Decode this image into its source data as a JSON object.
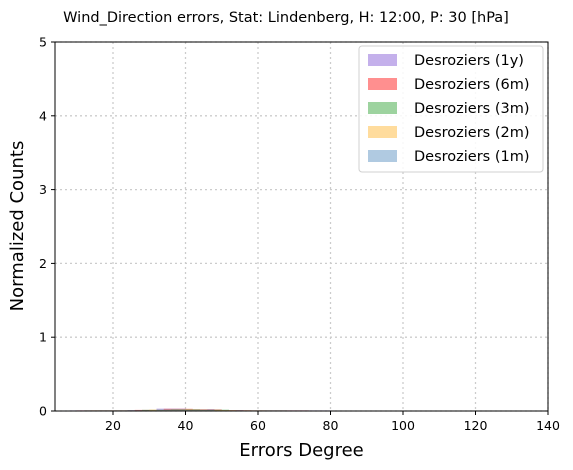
{
  "chart_data": {
    "type": "histogram",
    "title": "Wind_Direction errors, Stat: Lindenberg, H: 12:00, P: 30 [hPa]",
    "xlabel": "Errors Degree",
    "ylabel": "Normalized Counts",
    "xlim": [
      4,
      140
    ],
    "ylim": [
      0,
      5
    ],
    "xticks": [
      "20",
      "40",
      "60",
      "80",
      "100",
      "120",
      "140"
    ],
    "yticks": [
      "0",
      "1",
      "2",
      "3",
      "4",
      "5"
    ],
    "grid": true,
    "legend_position": "top-right",
    "series": [
      {
        "name": "Desroziers (1y)",
        "color": "#9370db",
        "bins": [
          {
            "x0": 8,
            "x1": 16,
            "y": 0.002
          },
          {
            "x0": 16,
            "x1": 24,
            "y": 0.004
          },
          {
            "x0": 24,
            "x1": 32,
            "y": 0.012
          },
          {
            "x0": 32,
            "x1": 40,
            "y": 0.032
          },
          {
            "x0": 40,
            "x1": 48,
            "y": 0.025
          },
          {
            "x0": 48,
            "x1": 56,
            "y": 0.012
          },
          {
            "x0": 56,
            "x1": 64,
            "y": 0.005
          },
          {
            "x0": 64,
            "x1": 72,
            "y": 0.003
          },
          {
            "x0": 72,
            "x1": 80,
            "y": 0.002
          }
        ]
      },
      {
        "name": "Desroziers (6m)",
        "color": "#ff3333",
        "bins": [
          {
            "x0": 10,
            "x1": 18,
            "y": 0.002
          },
          {
            "x0": 18,
            "x1": 26,
            "y": 0.006
          },
          {
            "x0": 26,
            "x1": 34,
            "y": 0.015
          },
          {
            "x0": 34,
            "x1": 42,
            "y": 0.03
          },
          {
            "x0": 42,
            "x1": 50,
            "y": 0.022
          },
          {
            "x0": 50,
            "x1": 58,
            "y": 0.01
          },
          {
            "x0": 58,
            "x1": 66,
            "y": 0.004
          },
          {
            "x0": 66,
            "x1": 74,
            "y": 0.002
          }
        ]
      },
      {
        "name": "Desroziers (3m)",
        "color": "#4caf50",
        "bins": [
          {
            "x0": 12,
            "x1": 20,
            "y": 0.002
          },
          {
            "x0": 20,
            "x1": 28,
            "y": 0.006
          },
          {
            "x0": 28,
            "x1": 36,
            "y": 0.016
          },
          {
            "x0": 36,
            "x1": 44,
            "y": 0.024
          },
          {
            "x0": 44,
            "x1": 52,
            "y": 0.018
          },
          {
            "x0": 52,
            "x1": 60,
            "y": 0.008
          },
          {
            "x0": 60,
            "x1": 68,
            "y": 0.003
          }
        ]
      },
      {
        "name": "Desroziers (2m)",
        "color": "#ffc04d",
        "bins": [
          {
            "x0": 14,
            "x1": 22,
            "y": 0.002
          },
          {
            "x0": 22,
            "x1": 30,
            "y": 0.007
          },
          {
            "x0": 30,
            "x1": 38,
            "y": 0.018
          },
          {
            "x0": 38,
            "x1": 46,
            "y": 0.02
          },
          {
            "x0": 46,
            "x1": 54,
            "y": 0.012
          },
          {
            "x0": 54,
            "x1": 62,
            "y": 0.005
          }
        ]
      },
      {
        "name": "Desroziers (1m)",
        "color": "#6f9fc8",
        "bins": [
          {
            "x0": 16,
            "x1": 24,
            "y": 0.003
          },
          {
            "x0": 24,
            "x1": 32,
            "y": 0.01
          },
          {
            "x0": 32,
            "x1": 40,
            "y": 0.02
          },
          {
            "x0": 40,
            "x1": 48,
            "y": 0.015
          },
          {
            "x0": 48,
            "x1": 56,
            "y": 0.006
          }
        ]
      }
    ]
  }
}
